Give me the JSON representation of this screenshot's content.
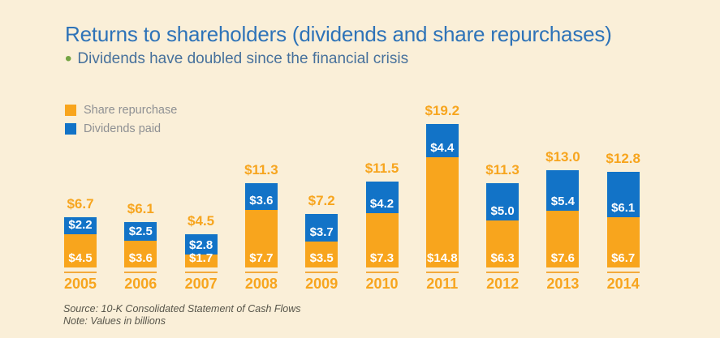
{
  "page": {
    "background_color": "#faefd8"
  },
  "header": {
    "title": "Returns to shareholders (dividends and share repurchases)",
    "title_color": "#2e73b8",
    "subtitle": "Dividends have doubled since the financial crisis",
    "subtitle_color": "#47719c",
    "bullet_color": "#74a443"
  },
  "legend": {
    "items": [
      {
        "label": "Share repurchase",
        "color": "#f8a51d"
      },
      {
        "label": "Dividends paid",
        "color": "#1273c7"
      }
    ]
  },
  "chart_data": {
    "type": "bar",
    "stacked": true,
    "orientation": "vertical",
    "categories": [
      "2005",
      "2006",
      "2007",
      "2008",
      "2009",
      "2010",
      "2011",
      "2012",
      "2013",
      "2014"
    ],
    "series": [
      {
        "name": "Share repurchase",
        "color": "#f8a51d",
        "values": [
          4.5,
          3.6,
          1.7,
          7.7,
          3.5,
          7.3,
          14.8,
          6.3,
          7.6,
          6.7
        ]
      },
      {
        "name": "Dividends paid",
        "color": "#1273c7",
        "values": [
          2.2,
          2.5,
          2.8,
          3.6,
          3.7,
          4.2,
          4.4,
          5.0,
          5.4,
          6.1
        ]
      }
    ],
    "totals": [
      6.7,
      6.1,
      4.5,
      11.3,
      7.2,
      11.5,
      19.2,
      11.3,
      13.0,
      12.8
    ],
    "value_prefix": "$",
    "value_decimals": 1,
    "label_color_totals": "#f7a51e",
    "label_color_segments": "#ffffff",
    "axis_tick_color": "#f3a93c",
    "legend_position": "top-left",
    "grid": false,
    "note": "Values in billions"
  },
  "footer": {
    "source": "Source: 10-K Consolidated Statement of Cash Flows",
    "note": "Note: Values in billions"
  }
}
